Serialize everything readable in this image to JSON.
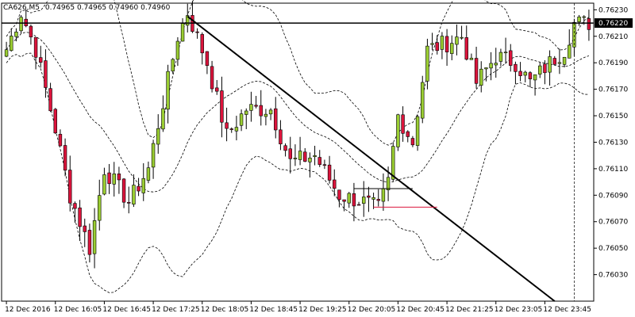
{
  "window": {
    "symbol_info": "CA626,M5",
    "ohlc_readout": "0.74965 0.74965 0.74960 0.74960"
  },
  "colors": {
    "background": "#ffffff",
    "bull": "#9ACD32",
    "bear": "#DC143C",
    "wick": "#000000",
    "band": "#000000",
    "trendline": "#000000",
    "horizontal_line": "#000000",
    "red_level": "#DC143C",
    "price_tag_bg": "#000000"
  },
  "chart_data": {
    "type": "candlestick",
    "y_range": [
      0.7601,
      0.76235
    ],
    "candle_count": 120,
    "y_ticks": [
      {
        "value": 0.7623,
        "label": "0.76230"
      },
      {
        "value": 0.7621,
        "label": "0.76210"
      },
      {
        "value": 0.7619,
        "label": "0.76190"
      },
      {
        "value": 0.7617,
        "label": "0.76170"
      },
      {
        "value": 0.7615,
        "label": "0.76150"
      },
      {
        "value": 0.7613,
        "label": "0.76130"
      },
      {
        "value": 0.7611,
        "label": "0.76110"
      },
      {
        "value": 0.7609,
        "label": "0.76090"
      },
      {
        "value": 0.7607,
        "label": "0.76070"
      },
      {
        "value": 0.7605,
        "label": "0.76050"
      },
      {
        "value": 0.7603,
        "label": "0.76030"
      }
    ],
    "x_ticks": [
      {
        "index": 0,
        "label": "12 Dec 2016"
      },
      {
        "index": 10,
        "label": "12 Dec 16:05"
      },
      {
        "index": 20,
        "label": "12 Dec 16:45"
      },
      {
        "index": 30,
        "label": "12 Dec 17:25"
      },
      {
        "index": 40,
        "label": "12 Dec 18:05"
      },
      {
        "index": 50,
        "label": "12 Dec 18:45"
      },
      {
        "index": 60,
        "label": "12 Dec 19:25"
      },
      {
        "index": 70,
        "label": "12 Dec 20:05"
      },
      {
        "index": 80,
        "label": "12 Dec 20:45"
      },
      {
        "index": 90,
        "label": "12 Dec 21:25"
      },
      {
        "index": 100,
        "label": "12 Dec 23:05"
      },
      {
        "index": 110,
        "label": "12 Dec 23:45"
      }
    ],
    "current_price": {
      "value": 0.7622,
      "label": "0.76220"
    },
    "anchors": [
      [
        0,
        0.762
      ],
      [
        3,
        0.76228
      ],
      [
        6,
        0.762
      ],
      [
        10,
        0.7614
      ],
      [
        13,
        0.7609
      ],
      [
        17,
        0.7605
      ],
      [
        20,
        0.7611
      ],
      [
        25,
        0.76085
      ],
      [
        29,
        0.7611
      ],
      [
        32,
        0.7616
      ],
      [
        35,
        0.7621
      ],
      [
        37,
        0.76228
      ],
      [
        41,
        0.7619
      ],
      [
        45,
        0.76135
      ],
      [
        49,
        0.76155
      ],
      [
        54,
        0.76155
      ],
      [
        58,
        0.76115
      ],
      [
        63,
        0.7612
      ],
      [
        68,
        0.7609
      ],
      [
        73,
        0.76085
      ],
      [
        76,
        0.7608
      ],
      [
        78,
        0.761
      ],
      [
        80,
        0.7615
      ],
      [
        83,
        0.7613
      ],
      [
        86,
        0.762
      ],
      [
        90,
        0.76205
      ],
      [
        93,
        0.7621
      ],
      [
        96,
        0.76175
      ],
      [
        100,
        0.76195
      ],
      [
        104,
        0.7619
      ],
      [
        107,
        0.76175
      ],
      [
        111,
        0.7619
      ],
      [
        114,
        0.762
      ],
      [
        116,
        0.7622
      ]
    ],
    "trendline": {
      "from": [
        37,
        0.76225
      ],
      "to": [
        112,
        0.7601
      ]
    },
    "support_black": {
      "from": [
        71,
        0.76095
      ],
      "to": [
        83,
        0.76095
      ],
      "value": 0.76095
    },
    "support_red": {
      "from": [
        75,
        0.76081
      ],
      "to": [
        88,
        0.76081
      ],
      "value": 0.76081
    },
    "bollinger_period": 20,
    "bollinger_dev": 2
  }
}
